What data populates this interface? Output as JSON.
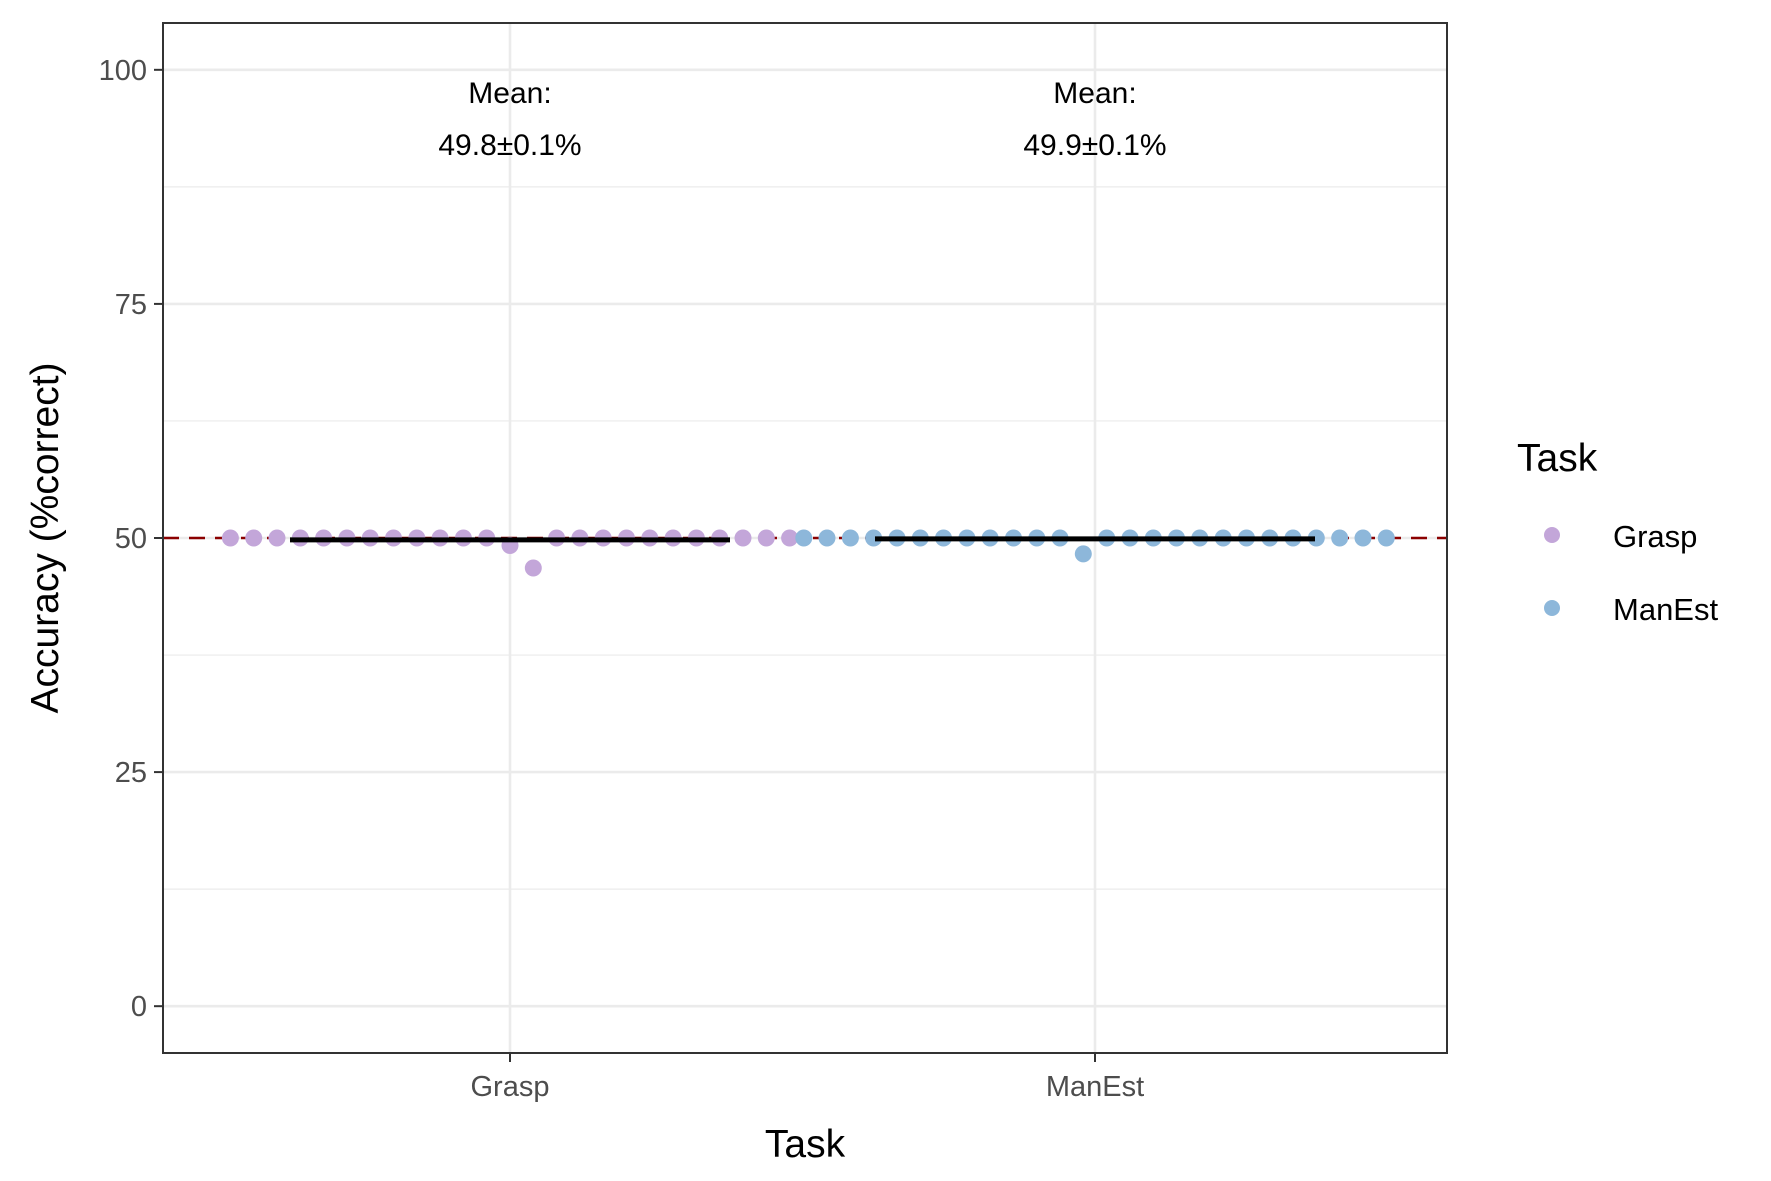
{
  "chart_data": {
    "type": "scatter",
    "xlabel": "Task",
    "ylabel": "Accuracy (%correct)",
    "categories": [
      "Grasp",
      "ManEst"
    ],
    "ylim": [
      -5,
      105
    ],
    "yticks": [
      0,
      25,
      50,
      75,
      100
    ],
    "grid": true,
    "chance_line": 50,
    "series": [
      {
        "name": "Grasp",
        "category": "Grasp",
        "color": "#c3a6d9",
        "mean": 49.8,
        "values": [
          50,
          50,
          50,
          50,
          50,
          50,
          50,
          50,
          50,
          50,
          50,
          50,
          49.2,
          46.8,
          50,
          50,
          50,
          50,
          50,
          50,
          50,
          50,
          50,
          50,
          50
        ]
      },
      {
        "name": "ManEst",
        "category": "ManEst",
        "color": "#8db7da",
        "mean": 49.9,
        "values": [
          50,
          50,
          50,
          50,
          50,
          50,
          50,
          50,
          50,
          50,
          50,
          50,
          48.3,
          50,
          50,
          50,
          50,
          50,
          50,
          50,
          50,
          50,
          50,
          50,
          50,
          50
        ]
      }
    ],
    "annotations": [
      {
        "category": "Grasp",
        "line1": "Mean:",
        "line2": "49.8±0.1%"
      },
      {
        "category": "ManEst",
        "line1": "Mean:",
        "line2": "49.9±0.1%"
      }
    ],
    "legend": {
      "title": "Task",
      "position": "right",
      "items": [
        "Grasp",
        "ManEst"
      ]
    }
  }
}
